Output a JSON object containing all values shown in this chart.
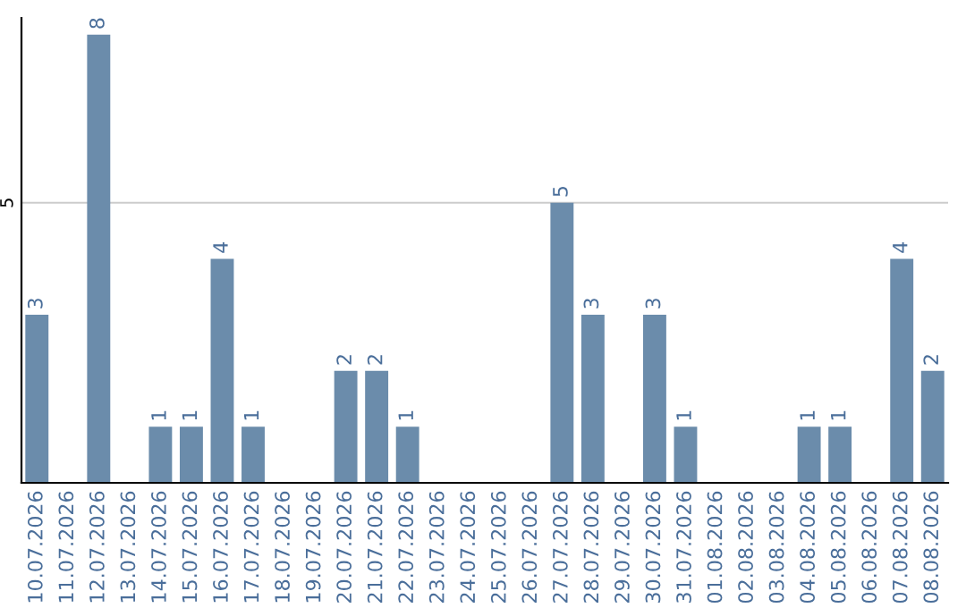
{
  "chart_data": {
    "type": "bar",
    "categories": [
      "10.07.2026",
      "11.07.2026",
      "12.07.2026",
      "13.07.2026",
      "14.07.2026",
      "15.07.2026",
      "16.07.2026",
      "17.07.2026",
      "18.07.2026",
      "19.07.2026",
      "20.07.2026",
      "21.07.2026",
      "22.07.2026",
      "23.07.2026",
      "24.07.2026",
      "25.07.2026",
      "26.07.2026",
      "27.07.2026",
      "28.07.2026",
      "29.07.2026",
      "30.07.2026",
      "31.07.2026",
      "01.08.2026",
      "02.08.2026",
      "03.08.2026",
      "04.08.2026",
      "05.08.2026",
      "06.08.2026",
      "07.08.2026",
      "08.08.2026"
    ],
    "values": [
      3,
      0,
      8,
      0,
      1,
      1,
      4,
      1,
      0,
      0,
      2,
      2,
      1,
      0,
      0,
      0,
      0,
      5,
      3,
      0,
      3,
      1,
      0,
      0,
      0,
      1,
      1,
      0,
      4,
      2
    ],
    "value_labels": [
      "3",
      null,
      "8",
      null,
      "1",
      "1",
      "4",
      "1",
      null,
      null,
      "2",
      "2",
      "1",
      null,
      null,
      null,
      null,
      "5",
      "3",
      null,
      "3",
      "1",
      null,
      null,
      null,
      "1",
      "1",
      null,
      "4",
      "2"
    ],
    "color": "#6b8cab",
    "ylim": [
      0,
      8.3
    ],
    "yticks": [
      5
    ],
    "grid": "y",
    "legend": false
  }
}
